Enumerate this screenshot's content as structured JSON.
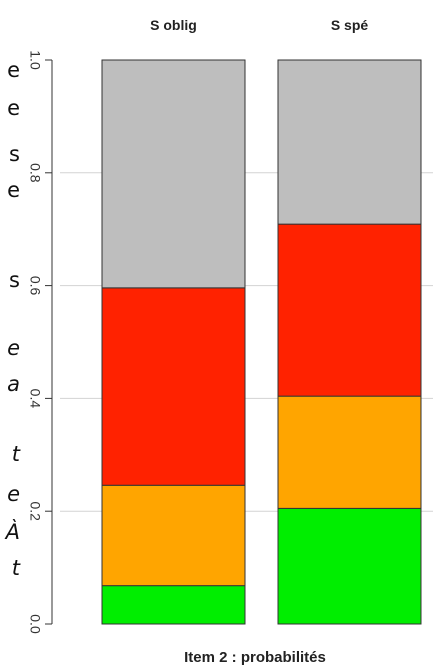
{
  "clipped_text": [
    {
      "text": "e",
      "italic": false
    },
    {
      "text": "e",
      "italic": false
    },
    {
      "text": "s",
      "italic": false
    },
    {
      "text": "e",
      "italic": false
    },
    {
      "text": "s",
      "italic": false
    },
    {
      "text": "e",
      "italic": true
    },
    {
      "text": "a",
      "italic": true
    },
    {
      "text": "t",
      "italic": true
    },
    {
      "text": "e",
      "italic": true
    },
    {
      "text": "À",
      "italic": true
    },
    {
      "text": "t",
      "italic": true
    }
  ],
  "chart_data": {
    "type": "bar",
    "stacked": true,
    "categories": [
      "S oblig",
      "S spé"
    ],
    "series": [
      {
        "color": "#00ee00",
        "values": [
          0.068,
          0.205
        ]
      },
      {
        "color": "#ffa500",
        "values": [
          0.178,
          0.199
        ]
      },
      {
        "color": "#ff2200",
        "values": [
          0.35,
          0.305
        ]
      },
      {
        "color": "#bebebe",
        "values": [
          0.404,
          0.291
        ]
      }
    ],
    "xlabel": "Item 2 : probabilités",
    "ylim": [
      0,
      1
    ],
    "yticks": [
      "0.0",
      "0.2",
      "0.4",
      "0.6",
      "0.8",
      "1.0"
    ],
    "ytick_values": [
      0,
      0.2,
      0.4,
      0.6,
      0.8,
      1.0
    ],
    "grid": true,
    "gridline_color": "#d3d3d3"
  }
}
